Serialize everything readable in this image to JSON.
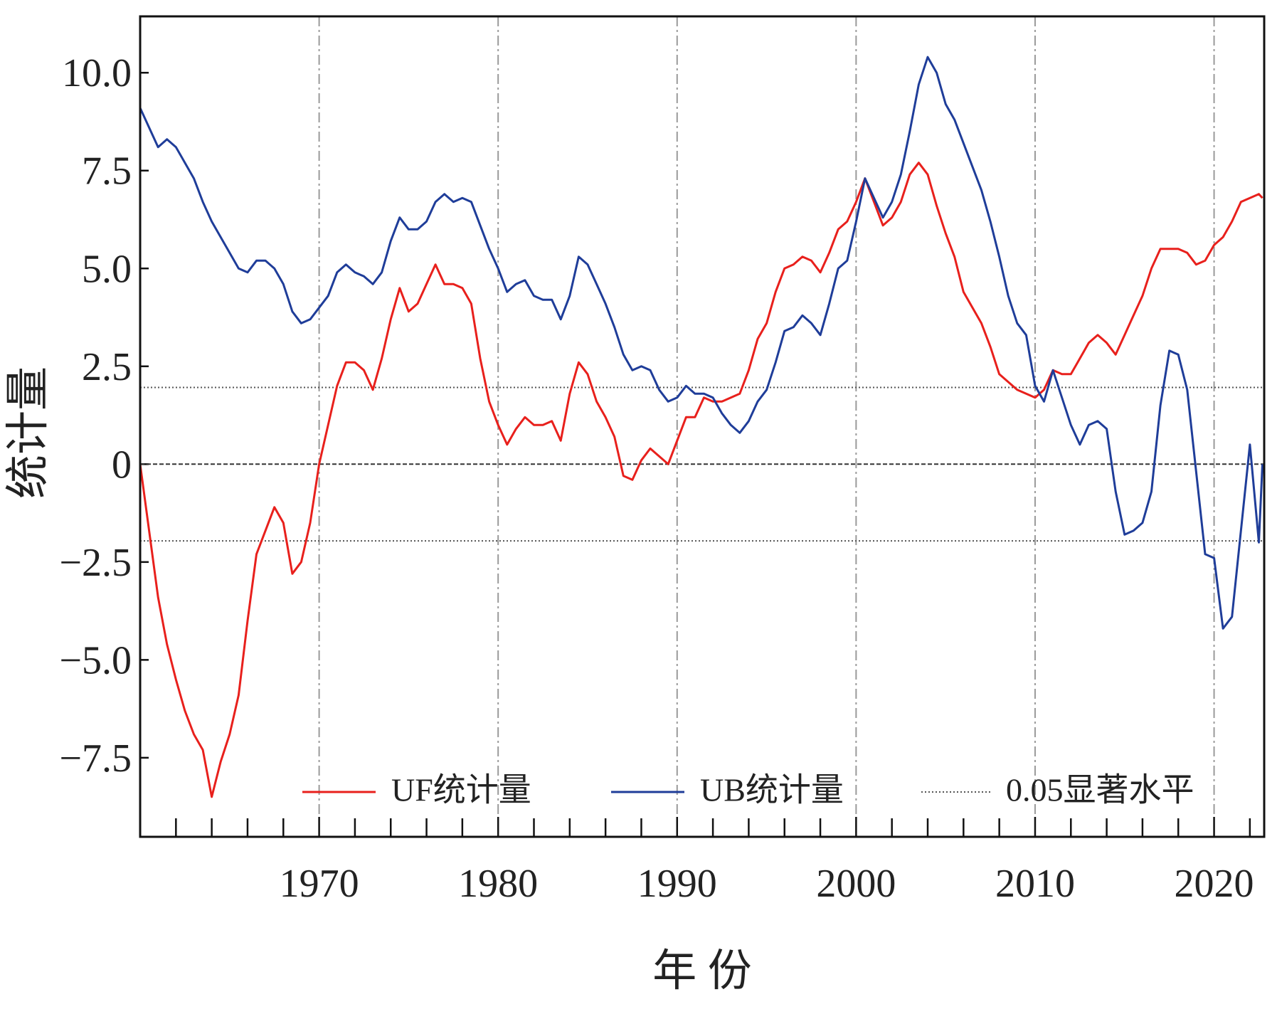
{
  "chart_data": {
    "type": "line",
    "xlabel": "年 份",
    "ylabel": "统计量",
    "x": [
      1960,
      1960.5,
      1961,
      1961.5,
      1962,
      1962.5,
      1963,
      1963.5,
      1964,
      1964.5,
      1965,
      1965.5,
      1966,
      1966.5,
      1967,
      1967.5,
      1968,
      1968.5,
      1969,
      1969.5,
      1970,
      1970.5,
      1971,
      1971.5,
      1972,
      1972.5,
      1973,
      1973.5,
      1974,
      1974.5,
      1975,
      1975.5,
      1976,
      1976.5,
      1977,
      1977.5,
      1978,
      1978.5,
      1979,
      1979.5,
      1980,
      1980.5,
      1981,
      1981.5,
      1982,
      1982.5,
      1983,
      1983.5,
      1984,
      1984.5,
      1985,
      1985.5,
      1986,
      1986.5,
      1987,
      1987.5,
      1988,
      1988.5,
      1989,
      1989.5,
      1990,
      1990.5,
      1991,
      1991.5,
      1992,
      1992.5,
      1993,
      1993.5,
      1994,
      1994.5,
      1995,
      1995.5,
      1996,
      1996.5,
      1997,
      1997.5,
      1998,
      1998.5,
      1999,
      1999.5,
      2000,
      2000.5,
      2001,
      2001.5,
      2002,
      2002.5,
      2003,
      2003.5,
      2004,
      2004.5,
      2005,
      2005.5,
      2006,
      2006.5,
      2007,
      2007.5,
      2008,
      2008.5,
      2009,
      2009.5,
      2010,
      2010.5,
      2011,
      2011.5,
      2012,
      2012.5,
      2013,
      2013.5,
      2014,
      2014.5,
      2015,
      2015.5,
      2016,
      2016.5,
      2017,
      2017.5,
      2018,
      2018.5,
      2019,
      2019.5,
      2020,
      2020.5,
      2021,
      2021.5,
      2022,
      2022.5,
      2022.7
    ],
    "series": [
      {
        "name": "UF统计量",
        "color": "#e8201c",
        "values": [
          0,
          -1.7,
          -3.4,
          -4.6,
          -5.5,
          -6.3,
          -6.9,
          -7.3,
          -8.5,
          -7.6,
          -6.9,
          -5.9,
          -4.0,
          -2.3,
          -1.7,
          -1.1,
          -1.5,
          -2.8,
          -2.5,
          -1.5,
          0,
          1.0,
          2.0,
          2.6,
          2.6,
          2.4,
          1.9,
          2.7,
          3.7,
          4.5,
          3.9,
          4.1,
          4.6,
          5.1,
          4.6,
          4.6,
          4.5,
          4.1,
          2.7,
          1.6,
          1.0,
          0.5,
          0.9,
          1.2,
          1.0,
          1.0,
          1.1,
          0.6,
          1.8,
          2.6,
          2.3,
          1.6,
          1.2,
          0.7,
          -0.3,
          -0.4,
          0.1,
          0.4,
          0.2,
          0.0,
          0.6,
          1.2,
          1.2,
          1.7,
          1.6,
          1.6,
          1.7,
          1.8,
          2.4,
          3.2,
          3.6,
          4.4,
          5.0,
          5.1,
          5.3,
          5.2,
          4.9,
          5.4,
          6.0,
          6.2,
          6.7,
          7.3,
          6.7,
          6.1,
          6.3,
          6.7,
          7.4,
          7.7,
          7.4,
          6.6,
          5.9,
          5.3,
          4.4,
          4.0,
          3.6,
          3.0,
          2.3,
          2.1,
          1.9,
          1.8,
          1.7,
          1.9,
          2.4,
          2.3,
          2.3,
          2.7,
          3.1,
          3.3,
          3.1,
          2.8,
          3.3,
          3.8,
          4.3,
          5.0,
          5.5,
          5.5,
          5.5,
          5.4,
          5.1,
          5.2,
          5.6,
          5.8,
          6.2,
          6.7,
          6.8,
          6.9,
          6.8
        ]
      },
      {
        "name": "UB统计量",
        "color": "#1f3d99",
        "values": [
          9.1,
          8.6,
          8.1,
          8.3,
          8.1,
          7.7,
          7.3,
          6.7,
          6.2,
          5.8,
          5.4,
          5.0,
          4.9,
          5.2,
          5.2,
          5.0,
          4.6,
          3.9,
          3.6,
          3.7,
          4.0,
          4.3,
          4.9,
          5.1,
          4.9,
          4.8,
          4.6,
          4.9,
          5.7,
          6.3,
          6.0,
          6.0,
          6.2,
          6.7,
          6.9,
          6.7,
          6.8,
          6.7,
          6.1,
          5.5,
          5.0,
          4.4,
          4.6,
          4.7,
          4.3,
          4.2,
          4.2,
          3.7,
          4.3,
          5.3,
          5.1,
          4.6,
          4.1,
          3.5,
          2.8,
          2.4,
          2.5,
          2.4,
          1.9,
          1.6,
          1.7,
          2.0,
          1.8,
          1.8,
          1.7,
          1.3,
          1.0,
          0.8,
          1.1,
          1.6,
          1.9,
          2.6,
          3.4,
          3.5,
          3.8,
          3.6,
          3.3,
          4.1,
          5.0,
          5.2,
          6.2,
          7.3,
          6.8,
          6.3,
          6.7,
          7.4,
          8.5,
          9.7,
          10.4,
          10.0,
          9.2,
          8.8,
          8.2,
          7.6,
          7.0,
          6.2,
          5.3,
          4.3,
          3.6,
          3.3,
          2.0,
          1.6,
          2.4,
          1.7,
          1.0,
          0.5,
          1.0,
          1.1,
          0.9,
          -0.7,
          -1.8,
          -1.7,
          -1.5,
          -0.7,
          1.5,
          2.9,
          2.8,
          1.9,
          -0.2,
          -2.3,
          -2.4,
          -4.2,
          -3.9,
          -1.7,
          0.5,
          -2.0,
          0.0
        ]
      }
    ],
    "significance": {
      "name": "0.05显著水平",
      "color": "#555555",
      "values": [
        1.96,
        -1.96
      ]
    },
    "zero_line": {
      "value": 0,
      "color": "#333333"
    },
    "xlim": [
      1960,
      2022.8
    ],
    "xticks": [
      1970,
      1980,
      1990,
      2000,
      2010,
      2020
    ],
    "x_minor_ticks": [
      1962,
      1964,
      1966,
      1968,
      1972,
      1974,
      1976,
      1978,
      1982,
      1984,
      1986,
      1988,
      1992,
      1994,
      1996,
      1998,
      2002,
      2004,
      2006,
      2008,
      2012,
      2014,
      2016,
      2018,
      2022
    ],
    "ylim": [
      -9.52,
      11.44
    ],
    "yticks": [
      {
        "value": -7.5,
        "label": "−7.5"
      },
      {
        "value": -5,
        "label": "−5.0"
      },
      {
        "value": -2.5,
        "label": "−2.5"
      },
      0,
      2.5,
      {
        "value": 5,
        "label": "5.0"
      },
      7.5,
      {
        "value": 10,
        "label": "10.0"
      }
    ],
    "grid": "x",
    "legend": "bottom"
  }
}
